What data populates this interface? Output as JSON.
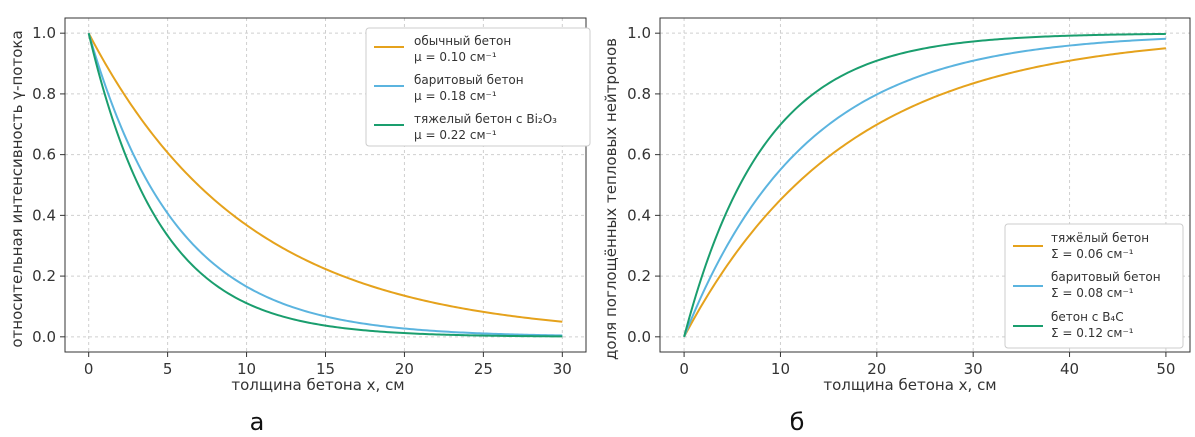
{
  "chart_data": [
    {
      "type": "line",
      "title": "",
      "panel_label": "а",
      "xlabel": "толщина бетона x, см",
      "ylabel": "относительная интенсивность γ-потока",
      "xlim": [
        -1.5,
        31.5
      ],
      "ylim": [
        -0.05,
        1.05
      ],
      "xticks": [
        0,
        5,
        10,
        15,
        20,
        25,
        30
      ],
      "yticks": [
        0.0,
        0.2,
        0.4,
        0.6,
        0.8,
        1.0
      ],
      "xtick_labels": [
        "0",
        "5",
        "10",
        "15",
        "20",
        "25",
        "30"
      ],
      "ytick_labels": [
        "0.0",
        "0.2",
        "0.4",
        "0.6",
        "0.8",
        "1.0"
      ],
      "grid": true,
      "legend_position": "top-right",
      "formula": "exp(-k*x)",
      "series": [
        {
          "name": "обычный бетон",
          "param_label": "μ = 0.10 см⁻¹",
          "k": 0.1,
          "color": "#E5A21C"
        },
        {
          "name": "баритовый бетон",
          "param_label": "μ = 0.18 см⁻¹",
          "k": 0.18,
          "color": "#5BB4DF"
        },
        {
          "name": "тяжелый бетон с Bi₂O₃",
          "param_label": "μ = 0.22 см⁻¹",
          "k": 0.22,
          "color": "#1A9E6E"
        }
      ]
    },
    {
      "type": "line",
      "title": "",
      "panel_label": "б",
      "xlabel": "толщина бетона x, см",
      "ylabel": "доля поглощённых тепловых нейтронов",
      "xlim": [
        -2.5,
        52.5
      ],
      "ylim": [
        -0.05,
        1.05
      ],
      "xticks": [
        0,
        10,
        20,
        30,
        40,
        50
      ],
      "yticks": [
        0.0,
        0.2,
        0.4,
        0.6,
        0.8,
        1.0
      ],
      "xtick_labels": [
        "0",
        "10",
        "20",
        "30",
        "40",
        "50"
      ],
      "ytick_labels": [
        "0.0",
        "0.2",
        "0.4",
        "0.6",
        "0.8",
        "1.0"
      ],
      "grid": true,
      "legend_position": "bottom-right",
      "formula": "1-exp(-k*x)",
      "series": [
        {
          "name": "тяжёлый бетон",
          "param_label": "Σ = 0.06 см⁻¹",
          "k": 0.06,
          "color": "#E5A21C"
        },
        {
          "name": "баритовый бетон",
          "param_label": "Σ = 0.08 см⁻¹",
          "k": 0.08,
          "color": "#5BB4DF"
        },
        {
          "name": "бетон с B₄C",
          "param_label": "Σ = 0.12 см⁻¹",
          "k": 0.12,
          "color": "#1A9E6E"
        }
      ]
    }
  ]
}
